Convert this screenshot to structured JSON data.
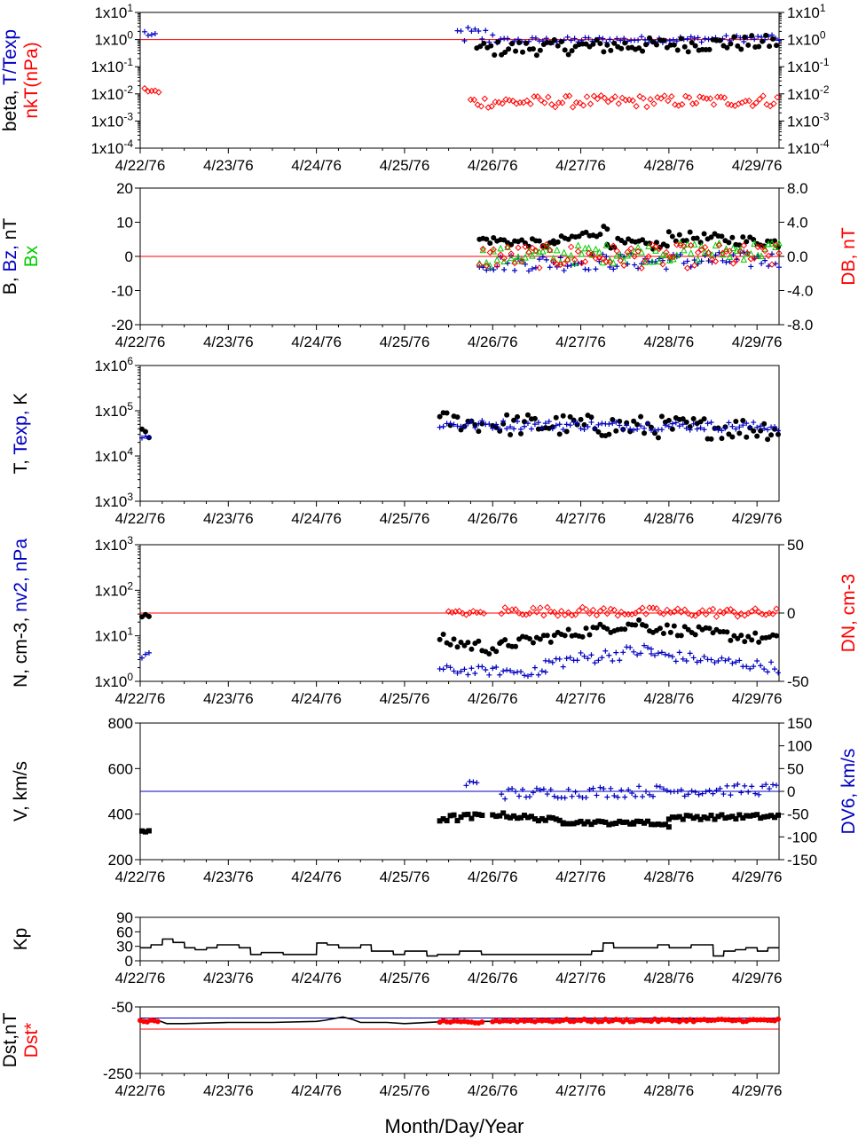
{
  "x_title": "Month/Day/Year",
  "x_ticks": [
    "4/22/76",
    "4/23/76",
    "4/24/76",
    "4/25/76",
    "4/26/76",
    "4/27/76",
    "4/28/76",
    "4/29/76"
  ],
  "colors": {
    "black": "#000000",
    "red": "#ff0000",
    "blue": "#0000c0",
    "green": "#00cc00"
  },
  "chart_data": [
    {
      "id": "beta",
      "type": "scatter",
      "ylabel_parts": [
        {
          "text": "beta, ",
          "color": "black"
        },
        {
          "text": "T/Texp",
          "color": "blue"
        }
      ],
      "ylabel2_parts": [
        {
          "text": "nkT(nPa)",
          "color": "red"
        }
      ],
      "yscale": "log",
      "ylim": [
        -4,
        1
      ],
      "left_ticks": [
        "1x10-4",
        "1x10-3",
        "1x10-2",
        "1x10-1",
        "1x100",
        "1x101"
      ],
      "right_ticks": [
        "1x10-4",
        "1x10-3",
        "1x10-2",
        "1x10-1",
        "1x100",
        "1x101"
      ],
      "reference_line": {
        "y": 0,
        "color": "red"
      },
      "series": [
        {
          "marker": "cross",
          "color": "blue",
          "segments": [
            {
              "t": [
                0.05,
                0.2
              ],
              "y": [
                0.25,
                0.06
              ],
              "noise": 0.12
            },
            {
              "t": [
                3.6,
                4.05
              ],
              "y": [
                0.2,
                0.1
              ],
              "noise": 0.35
            },
            {
              "t": [
                4.05,
                7.25
              ],
              "y": [
                -0.05,
                0.05
              ],
              "noise": 0.12
            }
          ]
        },
        {
          "marker": "dot",
          "color": "black",
          "segments": [
            {
              "t": [
                3.82,
                7.25
              ],
              "y": [
                -0.35,
                -0.1
              ],
              "noise": 0.28
            }
          ]
        },
        {
          "marker": "diamond",
          "color": "red",
          "segments": [
            {
              "t": [
                0.05,
                0.22
              ],
              "y": [
                -1.85,
                -1.95
              ],
              "noise": 0.08
            },
            {
              "t": [
                3.75,
                7.25
              ],
              "y": [
                -2.3,
                -2.25
              ],
              "noise": 0.22
            }
          ]
        }
      ]
    },
    {
      "id": "bfield",
      "type": "scatter",
      "ylabel_parts": [
        {
          "text": "B, ",
          "color": "black"
        },
        {
          "text": "Bz, ",
          "color": "blue"
        },
        {
          "text": "nT",
          "color": "black"
        }
      ],
      "ylabel2_parts": [
        {
          "text": "Bx",
          "color": "green"
        }
      ],
      "right_label_parts": [
        {
          "text": "DB, nT",
          "color": "red"
        }
      ],
      "ylim": [
        -20,
        20
      ],
      "left_ticks": [
        "-20",
        "-10",
        "0",
        "10",
        "20"
      ],
      "right_ticks": [
        "-8.0",
        "-4.0",
        "0.0",
        "4.0",
        "8.0"
      ],
      "reference_line": {
        "y": 0,
        "color": "red"
      },
      "series": [
        {
          "marker": "dot",
          "color": "black",
          "segments": [
            {
              "t": [
                3.85,
                4.7
              ],
              "y": [
                5,
                3.5
              ],
              "noise": 1.2
            },
            {
              "t": [
                4.7,
                5.3
              ],
              "y": [
                4,
                8
              ],
              "noise": 1.5
            },
            {
              "t": [
                5.3,
                6.0
              ],
              "y": [
                4,
                3
              ],
              "noise": 1.5
            },
            {
              "t": [
                6.0,
                7.25
              ],
              "y": [
                6,
                4
              ],
              "noise": 1.5
            }
          ]
        },
        {
          "marker": "cross",
          "color": "blue",
          "segments": [
            {
              "t": [
                3.85,
                7.25
              ],
              "y": [
                -2,
                -1
              ],
              "noise": 2.5
            }
          ]
        },
        {
          "marker": "triangle",
          "color": "green",
          "segments": [
            {
              "t": [
                3.85,
                7.25
              ],
              "y": [
                0,
                2
              ],
              "noise": 2.8
            }
          ]
        },
        {
          "marker": "diamond",
          "color": "red",
          "segments": [
            {
              "t": [
                3.85,
                7.25
              ],
              "y": [
                0,
                0
              ],
              "noise": 3.5
            }
          ]
        }
      ]
    },
    {
      "id": "temp",
      "type": "scatter",
      "ylabel_parts": [
        {
          "text": "T, ",
          "color": "black"
        },
        {
          "text": "Texp, ",
          "color": "blue"
        },
        {
          "text": "K",
          "color": "black"
        }
      ],
      "yscale": "log",
      "ylim": [
        3,
        6
      ],
      "left_ticks": [
        "1x103",
        "1x104",
        "1x105",
        "1x106"
      ],
      "series": [
        {
          "marker": "dot",
          "color": "black",
          "segments": [
            {
              "t": [
                0.02,
                0.12
              ],
              "y": [
                4.6,
                4.45
              ],
              "noise": 0.1
            },
            {
              "t": [
                3.4,
                3.9
              ],
              "y": [
                4.8,
                4.7
              ],
              "noise": 0.2
            },
            {
              "t": [
                4.0,
                7.25
              ],
              "y": [
                4.7,
                4.6
              ],
              "noise": 0.25
            }
          ]
        },
        {
          "marker": "cross",
          "color": "blue",
          "segments": [
            {
              "t": [
                0.02,
                0.12
              ],
              "y": [
                4.4,
                4.4
              ],
              "noise": 0.1
            },
            {
              "t": [
                3.4,
                7.25
              ],
              "y": [
                4.7,
                4.65
              ],
              "noise": 0.1
            }
          ]
        }
      ]
    },
    {
      "id": "density",
      "type": "scatter",
      "ylabel_parts": [
        {
          "text": "N, cm-3, ",
          "color": "black"
        },
        {
          "text": "nv2, nPa",
          "color": "blue"
        }
      ],
      "right_label_parts": [
        {
          "text": "DN, cm-3",
          "color": "red"
        }
      ],
      "yscale": "log",
      "ylim": [
        0,
        3
      ],
      "left_ticks": [
        "1x100",
        "1x101",
        "1x102",
        "1x103"
      ],
      "right_ticks": [
        "-50",
        "0",
        "50"
      ],
      "reference_line": {
        "y": 1.5,
        "color": "red"
      },
      "series": [
        {
          "marker": "dot",
          "color": "black",
          "segments": [
            {
              "t": [
                0.02,
                0.1
              ],
              "y": [
                1.4,
                1.45
              ],
              "noise": 0.05
            },
            {
              "t": [
                3.4,
                4.1
              ],
              "y": [
                0.9,
                0.7
              ],
              "noise": 0.15
            },
            {
              "t": [
                4.1,
                5.7
              ],
              "y": [
                0.8,
                1.3
              ],
              "noise": 0.12
            },
            {
              "t": [
                5.7,
                7.25
              ],
              "y": [
                1.2,
                0.9
              ],
              "noise": 0.12
            }
          ]
        },
        {
          "marker": "cross",
          "color": "blue",
          "segments": [
            {
              "t": [
                0.02,
                0.1
              ],
              "y": [
                0.55,
                0.65
              ],
              "noise": 0.1
            },
            {
              "t": [
                3.4,
                4.6
              ],
              "y": [
                0.25,
                0.2
              ],
              "noise": 0.1
            },
            {
              "t": [
                4.6,
                5.8
              ],
              "y": [
                0.4,
                0.7
              ],
              "noise": 0.15
            },
            {
              "t": [
                5.8,
                7.25
              ],
              "y": [
                0.6,
                0.3
              ],
              "noise": 0.12
            }
          ]
        },
        {
          "marker": "diamond",
          "color": "red",
          "segments": [
            {
              "t": [
                3.5,
                3.9
              ],
              "y": [
                1.5,
                1.5
              ],
              "noise": 0.05
            },
            {
              "t": [
                4.1,
                7.25
              ],
              "y": [
                1.55,
                1.5
              ],
              "noise": 0.1
            }
          ]
        }
      ]
    },
    {
      "id": "velocity",
      "type": "scatter",
      "ylabel_parts": [
        {
          "text": "V, km/s",
          "color": "black"
        }
      ],
      "right_label_parts": [
        {
          "text": "DV6, km/s",
          "color": "blue"
        }
      ],
      "ylim": [
        200,
        800
      ],
      "left_ticks": [
        "200",
        "400",
        "600",
        "800"
      ],
      "right_ticks": [
        "-150",
        "-100",
        "-50",
        "0",
        "50",
        "100",
        "150"
      ],
      "reference_line": {
        "y": 500,
        "color": "blue"
      },
      "series": [
        {
          "marker": "square",
          "color": "black",
          "segments": [
            {
              "t": [
                0.02,
                0.12
              ],
              "y": [
                320,
                330
              ],
              "noise": 10
            },
            {
              "t": [
                3.4,
                3.9
              ],
              "y": [
                380,
                390
              ],
              "noise": 15
            },
            {
              "t": [
                4.0,
                4.8
              ],
              "y": [
                400,
                370
              ],
              "noise": 10
            },
            {
              "t": [
                4.8,
                5.6
              ],
              "y": [
                365,
                360
              ],
              "noise": 8
            },
            {
              "t": [
                5.6,
                6.0
              ],
              "y": [
                370,
                350
              ],
              "noise": 8
            },
            {
              "t": [
                6.0,
                7.25
              ],
              "y": [
                385,
                390
              ],
              "noise": 10
            }
          ]
        },
        {
          "marker": "cross",
          "color": "blue",
          "segments": [
            {
              "t": [
                3.7,
                3.85
              ],
              "y": [
                520,
                560
              ],
              "noise": 25
            },
            {
              "t": [
                4.1,
                7.25
              ],
              "y": [
                490,
                510
              ],
              "noise": 25
            }
          ]
        }
      ]
    },
    {
      "id": "kp",
      "type": "line",
      "ylabel_parts": [
        {
          "text": "Kp",
          "color": "black"
        }
      ],
      "ylim": [
        0,
        90
      ],
      "left_ticks": [
        "0",
        "30",
        "60",
        "90"
      ],
      "series": [
        {
          "color": "black",
          "x": [
            0,
            0.12,
            0.125,
            0.25,
            0.255,
            0.37,
            0.375,
            0.5,
            0.505,
            0.62,
            0.625,
            0.75,
            0.755,
            0.87,
            0.875,
            1.0,
            1.005,
            1.12,
            1.125,
            1.25,
            1.255,
            1.37,
            1.375,
            1.5,
            1.505,
            1.62,
            1.625,
            1.75,
            1.755,
            1.87,
            1.875,
            2.0,
            2.005,
            2.12,
            2.125,
            2.25,
            2.255,
            2.37,
            2.375,
            2.5,
            2.505,
            2.62,
            2.625,
            2.75,
            2.755,
            2.87,
            2.875,
            3.0,
            3.005,
            3.12,
            3.125,
            3.25,
            3.255,
            3.37,
            3.375,
            3.5,
            3.505,
            3.62,
            3.625,
            3.75,
            3.755,
            3.87,
            3.875,
            4.0,
            4.005,
            4.12,
            4.125,
            4.25,
            4.255,
            4.37,
            4.375,
            4.5,
            4.505,
            4.62,
            4.625,
            4.75,
            4.755,
            4.87,
            4.875,
            5.0,
            5.005,
            5.12,
            5.125,
            5.25,
            5.255,
            5.37,
            5.375,
            5.5,
            5.505,
            5.62,
            5.625,
            5.75,
            5.755,
            5.87,
            5.875,
            6.0,
            6.005,
            6.12,
            6.125,
            6.25,
            6.255,
            6.37,
            6.375,
            6.5,
            6.505,
            6.62,
            6.625,
            6.75,
            6.755,
            6.87,
            6.875,
            7.0,
            7.005,
            7.12,
            7.125,
            7.25
          ],
          "y": [
            27,
            27,
            33,
            33,
            45,
            45,
            38,
            38,
            27,
            27,
            23,
            23,
            27,
            27,
            33,
            33,
            33,
            33,
            27,
            27,
            13,
            13,
            17,
            17,
            17,
            17,
            13,
            13,
            13,
            13,
            13,
            13,
            37,
            37,
            33,
            33,
            27,
            27,
            27,
            27,
            33,
            33,
            20,
            20,
            20,
            20,
            13,
            13,
            20,
            20,
            20,
            20,
            10,
            10,
            13,
            13,
            13,
            13,
            20,
            20,
            20,
            20,
            13,
            13,
            13,
            13,
            13,
            13,
            13,
            13,
            13,
            13,
            13,
            13,
            13,
            13,
            13,
            13,
            13,
            13,
            13,
            13,
            20,
            20,
            37,
            37,
            27,
            27,
            27,
            27,
            27,
            27,
            27,
            27,
            33,
            33,
            27,
            27,
            27,
            27,
            33,
            33,
            33,
            33,
            10,
            10,
            20,
            20,
            23,
            23,
            27,
            27,
            20,
            20,
            27,
            27
          ]
        }
      ]
    },
    {
      "id": "dst",
      "type": "scatter",
      "ylabel_parts": [
        {
          "text": "Dst,nT",
          "color": "black"
        }
      ],
      "ylabel2_parts": [
        {
          "text": "Dst*",
          "color": "red"
        }
      ],
      "ylim": [
        -250,
        50
      ],
      "left_ticks": [
        "-250",
        "-50"
      ],
      "reference_lines": [
        {
          "y": 0,
          "color": "blue"
        },
        {
          "y": -50,
          "color": "red"
        }
      ],
      "series": [
        {
          "marker": "line",
          "color": "black",
          "x": [
            0,
            0.2,
            0.3,
            0.5,
            1.0,
            1.5,
            2.0,
            2.1,
            2.3,
            2.4,
            2.5,
            2.8,
            3.0,
            3.5,
            4.0,
            4.5,
            5.0,
            5.5,
            6.0,
            6.5,
            7.0,
            7.25
          ],
          "y": [
            -8,
            -10,
            -25,
            -25,
            -20,
            -20,
            -15,
            -10,
            5,
            -5,
            -20,
            -20,
            -25,
            -15,
            -15,
            -10,
            -5,
            -10,
            -5,
            -5,
            -10,
            -10
          ]
        },
        {
          "marker": "dot",
          "color": "red",
          "segments": [
            {
              "t": [
                0.0,
                0.2
              ],
              "y": [
                -10,
                -18
              ],
              "noise": 6
            },
            {
              "t": [
                3.4,
                3.9
              ],
              "y": [
                -15,
                -22
              ],
              "noise": 4
            },
            {
              "t": [
                4.0,
                7.25
              ],
              "y": [
                -12,
                -10
              ],
              "noise": 6
            }
          ]
        }
      ]
    }
  ]
}
